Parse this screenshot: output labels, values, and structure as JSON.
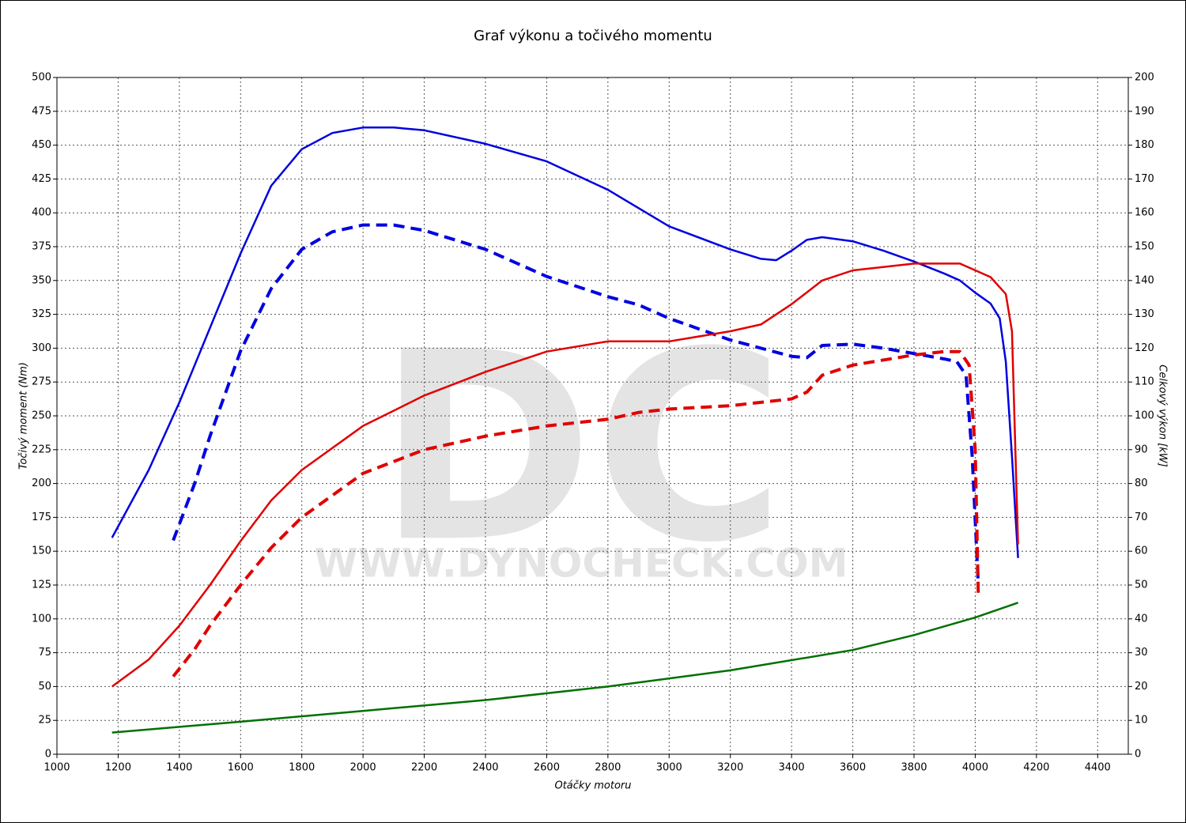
{
  "chart_data": {
    "type": "line",
    "title": "Graf výkonu a točivého momentu",
    "xlabel": "Otáčky motoru",
    "ylabel": "Točivý moment (Nm)",
    "y2label": "Celkový výkon [kW]",
    "watermark": "DC",
    "watermark_url": "WWW.DYNOCHECK.COM",
    "xlim": [
      1000,
      4500
    ],
    "xticks": [
      1000,
      1200,
      1400,
      1600,
      1800,
      2000,
      2200,
      2400,
      2600,
      2800,
      3000,
      3200,
      3400,
      3600,
      3800,
      4000,
      4200,
      4400
    ],
    "ylim": [
      0,
      500
    ],
    "yticks": [
      0,
      25,
      50,
      75,
      100,
      125,
      150,
      175,
      200,
      225,
      250,
      275,
      300,
      325,
      350,
      375,
      400,
      425,
      450,
      475,
      500
    ],
    "y2lim": [
      0,
      200
    ],
    "y2ticks": [
      0,
      10,
      20,
      30,
      40,
      50,
      60,
      70,
      80,
      90,
      100,
      110,
      120,
      130,
      140,
      150,
      160,
      170,
      180,
      190,
      200
    ],
    "grid": true,
    "series": [
      {
        "color": "#0000e0",
        "dash": false,
        "x": [
          1180,
          1300,
          1400,
          1500,
          1600,
          1700,
          1800,
          1900,
          2000,
          2100,
          2200,
          2400,
          2600,
          2800,
          3000,
          3200,
          3300,
          3350,
          3400,
          3450,
          3500,
          3600,
          3700,
          3800,
          3900,
          3950,
          4000,
          4050,
          4080,
          4100,
          4120,
          4140
        ],
        "values": [
          160,
          210,
          260,
          315,
          370,
          420,
          447,
          459,
          463,
          463,
          461,
          451,
          438,
          417,
          390,
          373,
          366,
          365,
          372,
          380,
          382,
          379,
          372,
          364,
          355,
          350,
          341,
          333,
          322,
          290,
          220,
          145
        ]
      },
      {
        "color": "#0000e0",
        "dash": true,
        "x": [
          1380,
          1450,
          1500,
          1600,
          1700,
          1800,
          1900,
          2000,
          2100,
          2200,
          2400,
          2600,
          2800,
          2900,
          3000,
          3200,
          3400,
          3450,
          3500,
          3600,
          3700,
          3800,
          3900,
          3940,
          3970,
          3990,
          4010
        ],
        "values": [
          158,
          200,
          235,
          298,
          344,
          373,
          386,
          391,
          391,
          387,
          373,
          353,
          338,
          332,
          322,
          306,
          294,
          293,
          302,
          303,
          300,
          296,
          292,
          290,
          280,
          220,
          125
        ]
      },
      {
        "color": "#e00000",
        "dash": false,
        "axis": "y2",
        "x": [
          1180,
          1300,
          1400,
          1500,
          1600,
          1700,
          1800,
          2000,
          2200,
          2400,
          2600,
          2800,
          3000,
          3200,
          3300,
          3400,
          3500,
          3600,
          3800,
          3950,
          4050,
          4100,
          4120,
          4140
        ],
        "values": [
          20,
          28,
          38,
          50,
          63,
          75,
          84,
          97,
          106,
          113,
          119,
          122,
          122,
          125,
          127,
          133,
          140,
          143,
          145,
          145,
          141,
          136,
          125,
          62
        ]
      },
      {
        "color": "#e00000",
        "dash": true,
        "axis": "y2",
        "x": [
          1380,
          1450,
          1500,
          1600,
          1700,
          1800,
          2000,
          2200,
          2400,
          2600,
          2800,
          2900,
          3000,
          3200,
          3400,
          3450,
          3500,
          3600,
          3800,
          3900,
          3950,
          3980,
          4000,
          4010
        ],
        "values": [
          23,
          31,
          38,
          50,
          61,
          70,
          83,
          90,
          94,
          97,
          99,
          101,
          102,
          103,
          105,
          107,
          112,
          115,
          118,
          119,
          119,
          115,
          90,
          47
        ]
      },
      {
        "color": "#007000",
        "dash": false,
        "x": [
          1180,
          1600,
          2000,
          2400,
          2800,
          3200,
          3600,
          3800,
          4000,
          4140
        ],
        "values": [
          16,
          24,
          32,
          40,
          50,
          62,
          77,
          88,
          101,
          112
        ]
      }
    ]
  }
}
